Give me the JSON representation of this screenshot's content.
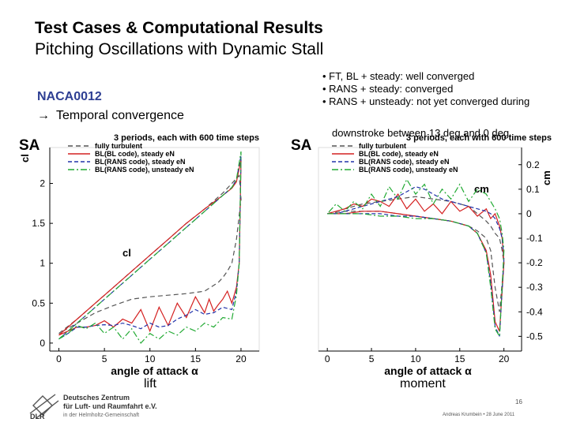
{
  "slide": {
    "title_main": "Test Cases & Computational Results",
    "title_sub": "Pitching Oscillations with Dynamic Stall",
    "bullets": [
      "• FT, BL + steady: well converged",
      "• RANS + steady: converged",
      "• RANS + unsteady: not yet converged during"
    ],
    "bullet_cont": "downstroke between 13 deg and 0 deg",
    "airfoil": "NACA0012",
    "temporal_arrow": "→",
    "temporal": "Temporal convergence",
    "caption_lift": "lift",
    "caption_moment": "moment",
    "page_number": "16",
    "author_date": "Andreas Krumbein • 28 June 2011",
    "logo_abbr": "DLR",
    "institute_line1": "Deutsches Zentrum",
    "institute_line2": "für Luft- und Raumfahrt e.V.",
    "institute_line3": "in der Helmholtz-Gemeinschaft"
  },
  "chart_data": [
    {
      "type": "line",
      "model_label": "SA",
      "title": "3 periods, each with 600 time steps",
      "xlabel": "angle of attack α",
      "ylabel": "cl",
      "inner_label": "cl",
      "xlim": [
        -1,
        22
      ],
      "ylim": [
        -0.1,
        2.45
      ],
      "xticks": [
        "0",
        "5",
        "10",
        "15",
        "20"
      ],
      "yticks": [
        "0",
        "0.5",
        "1",
        "1.5",
        "2"
      ],
      "series": [
        {
          "name": "fully turbulent",
          "color": "#555555",
          "dash": "6,4",
          "x": [
            0,
            2,
            4,
            6,
            8,
            10,
            12,
            14,
            16,
            17,
            18,
            18.5,
            19,
            19.4,
            19.8,
            20,
            19.5,
            19,
            18.5,
            18,
            17.5,
            16,
            14,
            12,
            10,
            8,
            6,
            4,
            2,
            0
          ],
          "y": [
            0.12,
            0.3,
            0.5,
            0.7,
            0.9,
            1.1,
            1.3,
            1.5,
            1.68,
            1.78,
            1.88,
            1.94,
            2.0,
            2.05,
            2.1,
            1.8,
            1.3,
            1.0,
            0.9,
            0.82,
            0.76,
            0.65,
            0.62,
            0.6,
            0.58,
            0.55,
            0.47,
            0.38,
            0.25,
            0.12
          ]
        },
        {
          "name": "BL(BL code), steady eN",
          "color": "#d42020",
          "dash": "",
          "x": [
            0,
            2,
            4,
            6,
            8,
            10,
            12,
            14,
            16,
            18,
            19,
            19.5,
            20,
            19.8,
            19.5,
            19,
            18.5,
            18,
            17.5,
            17,
            16.5,
            16,
            15,
            14,
            13,
            12,
            11,
            10,
            9,
            8,
            7,
            6,
            5,
            4,
            3,
            2,
            1,
            0
          ],
          "y": [
            0.1,
            0.3,
            0.5,
            0.7,
            0.9,
            1.1,
            1.3,
            1.5,
            1.68,
            1.85,
            1.94,
            2.02,
            2.3,
            1.0,
            0.7,
            0.5,
            0.65,
            0.55,
            0.48,
            0.4,
            0.55,
            0.38,
            0.58,
            0.32,
            0.5,
            0.22,
            0.45,
            0.15,
            0.42,
            0.25,
            0.3,
            0.2,
            0.28,
            0.22,
            0.2,
            0.2,
            0.15,
            0.1
          ]
        },
        {
          "name": "BL(RANS code), steady eN",
          "color": "#2233aa",
          "dash": "5,3",
          "x": [
            0,
            2,
            4,
            6,
            8,
            10,
            12,
            14,
            16,
            18,
            19,
            19.5,
            20,
            19.8,
            19.5,
            19,
            18,
            17,
            16,
            15,
            14,
            13,
            12,
            11,
            10,
            9,
            8,
            7,
            6,
            5,
            4,
            3,
            2,
            1,
            0
          ],
          "y": [
            0.05,
            0.25,
            0.45,
            0.65,
            0.85,
            1.05,
            1.25,
            1.45,
            1.65,
            1.85,
            1.95,
            2.05,
            2.35,
            1.0,
            0.65,
            0.42,
            0.45,
            0.38,
            0.36,
            0.42,
            0.35,
            0.3,
            0.22,
            0.2,
            0.25,
            0.18,
            0.22,
            0.25,
            0.22,
            0.23,
            0.22,
            0.2,
            0.2,
            0.12,
            0.05
          ]
        },
        {
          "name": "BL(RANS code), unsteady eN",
          "color": "#22aa33",
          "dash": "8,3,2,3",
          "x": [
            0,
            2,
            4,
            6,
            8,
            10,
            12,
            14,
            16,
            18,
            19,
            19.5,
            20,
            19.8,
            19.5,
            19,
            18,
            17,
            16,
            15,
            14,
            13,
            12,
            11,
            10,
            9,
            8,
            7,
            6,
            5,
            4,
            3,
            2,
            1,
            0
          ],
          "y": [
            0.05,
            0.25,
            0.45,
            0.65,
            0.85,
            1.05,
            1.25,
            1.45,
            1.65,
            1.85,
            1.95,
            2.05,
            2.4,
            1.0,
            0.6,
            0.3,
            0.32,
            0.2,
            0.25,
            0.15,
            0.2,
            0.1,
            0.15,
            0.05,
            0.12,
            0.0,
            0.18,
            0.05,
            0.2,
            0.12,
            0.25,
            0.18,
            0.22,
            0.12,
            0.05
          ]
        }
      ]
    },
    {
      "type": "line",
      "model_label": "SA",
      "title": "3 periods, each with 600 time steps",
      "xlabel": "angle of attack α",
      "ylabel": "cm",
      "inner_label": "cm",
      "xlim": [
        -1,
        22
      ],
      "ylim": [
        -0.56,
        0.27
      ],
      "xticks": [
        "0",
        "5",
        "10",
        "15",
        "20"
      ],
      "yticks": [
        "0.2",
        "0.1",
        "0",
        "-0.1",
        "-0.2",
        "-0.3",
        "-0.4",
        "-0.5"
      ],
      "series": [
        {
          "name": "fully turbulent",
          "color": "#555555",
          "dash": "6,4",
          "x": [
            0,
            2,
            4,
            6,
            8,
            10,
            12,
            14,
            16,
            17,
            18,
            18.5,
            19,
            19.5,
            20,
            19.8,
            19.5,
            19,
            18.5,
            18,
            17,
            16,
            14,
            12,
            10,
            8,
            6,
            4,
            2,
            0
          ],
          "y": [
            0.0,
            0.01,
            0.01,
            0.01,
            0.0,
            -0.01,
            -0.02,
            -0.03,
            -0.05,
            -0.07,
            -0.1,
            -0.15,
            -0.3,
            -0.4,
            -0.2,
            -0.15,
            -0.1,
            -0.08,
            -0.05,
            -0.03,
            0.0,
            0.03,
            0.05,
            0.06,
            0.07,
            0.06,
            0.05,
            0.04,
            0.02,
            0.0
          ]
        },
        {
          "name": "BL(BL code), steady eN",
          "color": "#d42020",
          "dash": "",
          "x": [
            0,
            2,
            4,
            6,
            8,
            10,
            12,
            14,
            16,
            17,
            18,
            18.5,
            19,
            19.5,
            20,
            19.8,
            19.5,
            19,
            18.5,
            18,
            17,
            16,
            15,
            14,
            13,
            12,
            11,
            10,
            9,
            8,
            7,
            6,
            5,
            4,
            3,
            2,
            1,
            0
          ],
          "y": [
            0.0,
            0.0,
            0.01,
            0.01,
            0.0,
            -0.01,
            -0.02,
            -0.03,
            -0.05,
            -0.08,
            -0.15,
            -0.25,
            -0.44,
            -0.48,
            -0.2,
            -0.1,
            -0.05,
            0.0,
            -0.02,
            0.02,
            -0.01,
            0.03,
            0.01,
            0.05,
            0.0,
            0.04,
            0.01,
            0.06,
            0.02,
            0.08,
            0.03,
            0.05,
            0.06,
            0.03,
            0.04,
            0.02,
            0.01,
            0.0
          ]
        },
        {
          "name": "BL(RANS code), steady eN",
          "color": "#2233aa",
          "dash": "5,3",
          "x": [
            0,
            2,
            4,
            6,
            8,
            10,
            12,
            14,
            16,
            17,
            18,
            18.5,
            19,
            19.5,
            20,
            19.8,
            19.5,
            19,
            18.5,
            18,
            17,
            16,
            15,
            14,
            13,
            12,
            11,
            10,
            9,
            8,
            7,
            6,
            5,
            4,
            3,
            2,
            1,
            0
          ],
          "y": [
            0.0,
            0.0,
            0.0,
            0.0,
            -0.01,
            -0.01,
            -0.02,
            -0.03,
            -0.05,
            -0.08,
            -0.16,
            -0.28,
            -0.46,
            -0.5,
            -0.18,
            -0.1,
            -0.06,
            -0.02,
            0.0,
            0.01,
            0.02,
            0.03,
            0.04,
            0.05,
            0.06,
            0.08,
            0.1,
            0.11,
            0.09,
            0.07,
            0.06,
            0.05,
            0.04,
            0.03,
            0.02,
            0.01,
            0.0,
            0.0
          ]
        },
        {
          "name": "BL(RANS code), unsteady eN",
          "color": "#22aa33",
          "dash": "8,3,2,3",
          "x": [
            0,
            2,
            4,
            6,
            8,
            10,
            12,
            14,
            16,
            17,
            18,
            18.5,
            19,
            19.5,
            20,
            19.8,
            19.5,
            19,
            18.5,
            18,
            17,
            16,
            15,
            14,
            13,
            12,
            11,
            10,
            9,
            8,
            7,
            6,
            5,
            4,
            3,
            2,
            1,
            0
          ],
          "y": [
            0.0,
            0.0,
            0.0,
            -0.01,
            -0.01,
            -0.02,
            -0.02,
            -0.03,
            -0.05,
            -0.08,
            -0.16,
            -0.3,
            -0.47,
            -0.5,
            -0.15,
            -0.08,
            -0.02,
            0.02,
            0.05,
            0.08,
            0.1,
            0.05,
            0.12,
            0.06,
            0.1,
            0.04,
            0.12,
            0.08,
            0.14,
            0.06,
            0.11,
            0.03,
            0.08,
            0.02,
            0.05,
            0.01,
            0.04,
            0.0
          ]
        }
      ]
    }
  ]
}
